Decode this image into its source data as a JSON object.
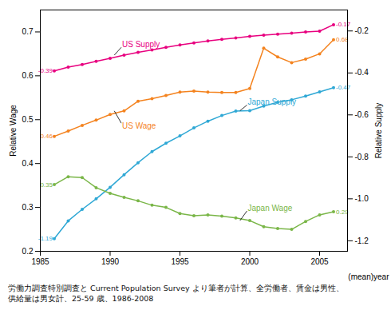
{
  "chart_data": {
    "type": "line",
    "xlabel": "(mean)year",
    "ylabel": "Relative Wage",
    "y2label": "Relative Supply",
    "caption": [
      "労働力調査特別調査と Current Population Survey より筆者が計算、全労働者、賃金は男性、",
      "供給量は男女計、25-59 歳、1986-2008"
    ],
    "x": [
      1986,
      1987,
      1988,
      1989,
      1990,
      1991,
      1992,
      1993,
      1994,
      1995,
      1996,
      1997,
      1998,
      1999,
      2000,
      2001,
      2002,
      2003,
      2004,
      2005,
      2006
    ],
    "xlim": [
      1985,
      2007
    ],
    "xticks": [
      1985,
      1990,
      1995,
      2000,
      2005
    ],
    "ylim": [
      0.2,
      0.75
    ],
    "yticks": [
      0.2,
      0.3,
      0.4,
      0.5,
      0.6,
      0.7
    ],
    "y2lim": [
      -1.25,
      -0.1
    ],
    "y2ticks": [
      -1.2,
      {
        "value": -1.0,
        "label": "-1.0"
      },
      -0.8,
      -0.6,
      -0.4,
      -0.2
    ],
    "data_labels": true,
    "series": [
      {
        "name": "US Supply",
        "color": "#e8007f",
        "axis": "y2",
        "marker": "circle",
        "values": [
          -0.39,
          -0.372,
          -0.36,
          -0.345,
          -0.33,
          -0.315,
          -0.302,
          -0.29,
          -0.278,
          -0.267,
          -0.257,
          -0.248,
          -0.24,
          -0.233,
          -0.226,
          -0.22,
          -0.215,
          -0.21,
          -0.205,
          -0.201,
          -0.17
        ],
        "value_labels": [
          "-0.39",
          null,
          null,
          null,
          null,
          null,
          null,
          null,
          null,
          null,
          null,
          null,
          null,
          null,
          null,
          null,
          null,
          null,
          null,
          null,
          "-0.17"
        ]
      },
      {
        "name": "Japan Supply",
        "color": "#2fa8d5",
        "axis": "y2",
        "marker": "circle",
        "values": [
          -1.19,
          -1.105,
          -1.05,
          -1.0,
          -0.945,
          -0.885,
          -0.828,
          -0.775,
          -0.735,
          -0.7,
          -0.662,
          -0.63,
          -0.603,
          -0.582,
          -0.58,
          -0.558,
          -0.54,
          -0.528,
          -0.51,
          -0.49,
          -0.47
        ],
        "value_labels": [
          "-1.19",
          null,
          null,
          null,
          null,
          null,
          null,
          null,
          null,
          null,
          null,
          null,
          null,
          null,
          null,
          null,
          null,
          null,
          null,
          null,
          "-0.47"
        ]
      },
      {
        "name": "US Wage",
        "color": "#f4831f",
        "axis": "y",
        "marker": "circle",
        "values": [
          0.462,
          0.474,
          0.487,
          0.499,
          0.512,
          0.52,
          0.542,
          0.548,
          0.555,
          0.563,
          0.565,
          0.563,
          0.562,
          0.562,
          0.571,
          0.663,
          0.643,
          0.63,
          0.638,
          0.65,
          0.682
        ],
        "value_labels": [
          "0.46",
          null,
          null,
          null,
          null,
          null,
          null,
          null,
          null,
          null,
          null,
          null,
          null,
          null,
          null,
          null,
          null,
          null,
          null,
          null,
          "0.68"
        ]
      },
      {
        "name": "Japan Wage",
        "color": "#7ab648",
        "axis": "y",
        "marker": "circle",
        "values": [
          0.352,
          0.37,
          0.368,
          0.345,
          0.332,
          0.323,
          0.315,
          0.305,
          0.3,
          0.286,
          0.281,
          0.283,
          0.28,
          0.276,
          0.27,
          0.256,
          0.252,
          0.25,
          0.268,
          0.283,
          0.29
        ],
        "value_labels": [
          "0.35",
          null,
          null,
          null,
          null,
          null,
          null,
          null,
          null,
          null,
          null,
          null,
          null,
          null,
          null,
          null,
          null,
          null,
          null,
          null,
          "0.29"
        ]
      }
    ],
    "annotations": [
      {
        "text": "US Supply",
        "x": 1990.8,
        "y": -0.278,
        "arrow_x": 1990.3,
        "arrow_y": -0.315,
        "axis": "y2",
        "color": "#e8007f"
      },
      {
        "text": "US Wage",
        "x": 1990.8,
        "y": 0.492,
        "arrow_x": 1990.3,
        "arrow_y": 0.52,
        "axis": "y",
        "color": "#f4831f"
      },
      {
        "text": "Japan Supply",
        "x": 1999.8,
        "y": -0.553,
        "arrow_x": 1999.3,
        "arrow_y": -0.58,
        "axis": "y2",
        "color": "#2fa8d5"
      },
      {
        "text": "Japan Wage",
        "x": 1999.8,
        "y": 0.292,
        "arrow_x": 1999.3,
        "arrow_y": 0.27,
        "axis": "y",
        "color": "#7ab648"
      }
    ]
  }
}
